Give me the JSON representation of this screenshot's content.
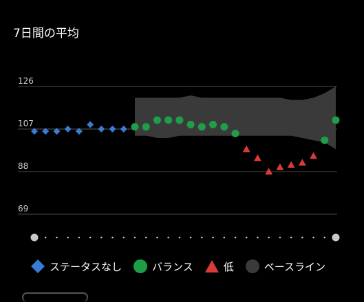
{
  "title": "7日間の平均",
  "colors": {
    "no_status": "#3a7bd5",
    "balanced": "#1f9e4a",
    "low": "#d93b3b",
    "baseline": "#3a3a3a",
    "gridline": "#4a4a4a",
    "scrub_dot": "#c8c8c8"
  },
  "legend": [
    {
      "label": "ステータスなし",
      "icon": "diamond-icon",
      "color": "#3a7bd5"
    },
    {
      "label": "バランス",
      "icon": "circle-icon",
      "color": "#1f9e4a"
    },
    {
      "label": "低",
      "icon": "triangle-icon",
      "color": "#d93b3b"
    },
    {
      "label": "ベースライン",
      "icon": "circle-icon",
      "color": "#3a3a3a"
    }
  ],
  "chart_data": {
    "type": "scatter",
    "title": "7日間の平均",
    "ylim": [
      69,
      126
    ],
    "yticks": [
      "126",
      "107",
      "88",
      "69"
    ],
    "grid": true,
    "x": [
      1,
      2,
      3,
      4,
      5,
      6,
      7,
      8,
      9,
      10,
      11,
      12,
      13,
      14,
      15,
      16,
      17,
      18,
      19,
      20,
      21,
      22,
      23,
      24,
      25,
      26,
      27,
      28
    ],
    "series": [
      {
        "name": "ステータスなし",
        "marker": "diamond",
        "x": [
          1,
          2,
          3,
          4,
          5,
          6,
          7,
          8,
          9
        ],
        "y": [
          106,
          106,
          106,
          107,
          106,
          109,
          107,
          107,
          107
        ]
      },
      {
        "name": "バランス",
        "marker": "circle",
        "x": [
          10,
          11,
          12,
          13,
          14,
          15,
          16,
          17,
          18,
          19,
          27,
          28
        ],
        "y": [
          108,
          108,
          111,
          111,
          111,
          109,
          108,
          109,
          108,
          105,
          102,
          111
        ]
      },
      {
        "name": "低",
        "marker": "triangle",
        "x": [
          20,
          21,
          22,
          23,
          24,
          25,
          26
        ],
        "y": [
          98,
          94,
          88,
          90,
          91,
          92,
          95
        ]
      },
      {
        "name": "ベースライン",
        "type": "band",
        "x": [
          10,
          11,
          12,
          13,
          14,
          15,
          16,
          17,
          18,
          19,
          20,
          21,
          22,
          23,
          24,
          25,
          26,
          27,
          28
        ],
        "upper": [
          121,
          121,
          121,
          121,
          121,
          122,
          121,
          121,
          121,
          121,
          121,
          121,
          121,
          121,
          120,
          120,
          121,
          123,
          126
        ],
        "lower": [
          104,
          104,
          103,
          103,
          104,
          104,
          104,
          104,
          104,
          104,
          104,
          104,
          104,
          104,
          104,
          103,
          102,
          101,
          98
        ]
      }
    ]
  },
  "scrubber": {
    "dot_count": 28
  }
}
